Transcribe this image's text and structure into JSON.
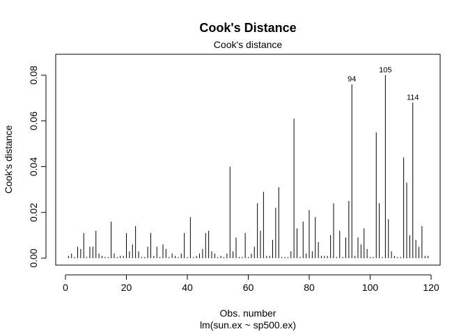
{
  "chart_data": {
    "type": "bar",
    "title": "Cook's Distance",
    "subtitle": "Cook's distance",
    "xlabel": "Obs. number",
    "xlabel_sub": "lm(sun.ex ~ sp500.ex)",
    "ylabel": "Cook's distance",
    "xlim": [
      0,
      120
    ],
    "ylim": [
      0,
      0.085
    ],
    "x_ticks": [
      0,
      20,
      40,
      60,
      80,
      100,
      120
    ],
    "y_ticks": [
      0.0,
      0.02,
      0.04,
      0.06,
      0.08
    ],
    "y_tick_labels": [
      "0.00",
      "0.02",
      "0.04",
      "0.06",
      "0.08"
    ],
    "grid": false,
    "legend": "none",
    "values": [
      0.001,
      0.002,
      0.0005,
      0.005,
      0.004,
      0.011,
      0.0005,
      0.005,
      0.005,
      0.012,
      0.002,
      0.001,
      0.0005,
      0.0005,
      0.016,
      0.002,
      0.0005,
      0.001,
      0.001,
      0.011,
      0.003,
      0.006,
      0.014,
      0.003,
      0.0005,
      0.0005,
      0.005,
      0.011,
      0.001,
      0.005,
      0.0005,
      0.006,
      0.004,
      0.0005,
      0.002,
      0.001,
      0.0005,
      0.002,
      0.011,
      0.0005,
      0.018,
      0.0005,
      0.001,
      0.002,
      0.004,
      0.011,
      0.012,
      0.003,
      0.002,
      0.0005,
      0.001,
      0.0005,
      0.002,
      0.04,
      0.003,
      0.009,
      0.0005,
      0.0005,
      0.011,
      0.0005,
      0.002,
      0.005,
      0.024,
      0.012,
      0.029,
      0.001,
      0.001,
      0.008,
      0.022,
      0.031,
      0.0005,
      0.0005,
      0.0005,
      0.003,
      0.061,
      0.013,
      0.0005,
      0.016,
      0.002,
      0.021,
      0.003,
      0.018,
      0.007,
      0.001,
      0.001,
      0.001,
      0.01,
      0.024,
      0.0005,
      0.012,
      0.0005,
      0.009,
      0.025,
      0.076,
      0.001,
      0.009,
      0.006,
      0.013,
      0.004,
      0.0005,
      0.0005,
      0.055,
      0.024,
      0.0005,
      0.08,
      0.017,
      0.003,
      0.001,
      0.0005,
      0.0005,
      0.044,
      0.033,
      0.01,
      0.068,
      0.008,
      0.005,
      0.014,
      0.001,
      0.001
    ],
    "labeled_points": [
      {
        "x": 94,
        "label": "94"
      },
      {
        "x": 105,
        "label": "105"
      },
      {
        "x": 114,
        "label": "114"
      }
    ]
  }
}
